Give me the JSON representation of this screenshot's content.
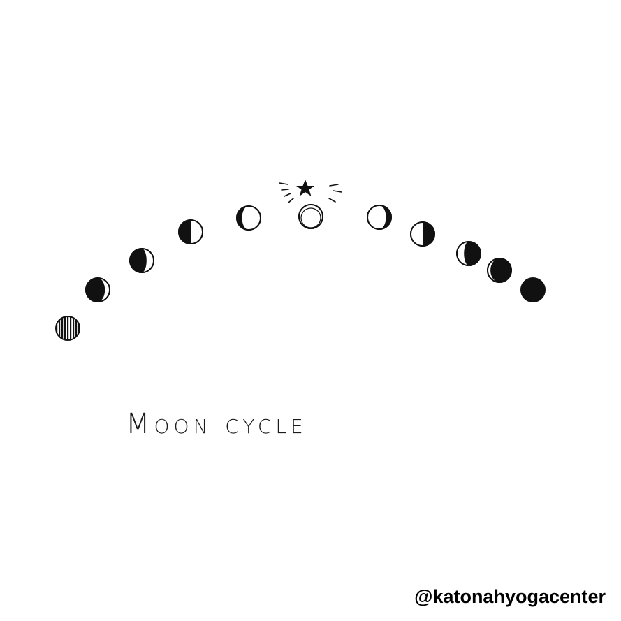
{
  "title": "Moon cycle",
  "watermark": "@katonahyogacenter",
  "colors": {
    "ink": "#111111",
    "background": "#ffffff"
  },
  "phases": [
    {
      "name": "new-moon-hatched",
      "lit_fraction": 0.0,
      "waxing": true
    },
    {
      "name": "waxing-crescent",
      "lit_fraction": 0.2,
      "waxing": true
    },
    {
      "name": "waxing-crescent-2",
      "lit_fraction": 0.3,
      "waxing": true
    },
    {
      "name": "first-quarter",
      "lit_fraction": 0.5,
      "waxing": true
    },
    {
      "name": "waxing-gibbous",
      "lit_fraction": 0.78,
      "waxing": true
    },
    {
      "name": "full-moon",
      "lit_fraction": 1.0,
      "waxing": true
    },
    {
      "name": "waning-gibbous",
      "lit_fraction": 0.78,
      "waxing": false
    },
    {
      "name": "last-quarter",
      "lit_fraction": 0.5,
      "waxing": false
    },
    {
      "name": "waning-crescent",
      "lit_fraction": 0.3,
      "waxing": false
    },
    {
      "name": "waning-crescent-2",
      "lit_fraction": 0.12,
      "waxing": false
    },
    {
      "name": "new-moon",
      "lit_fraction": 0.0,
      "waxing": false
    }
  ],
  "accent_icon": "star-icon"
}
